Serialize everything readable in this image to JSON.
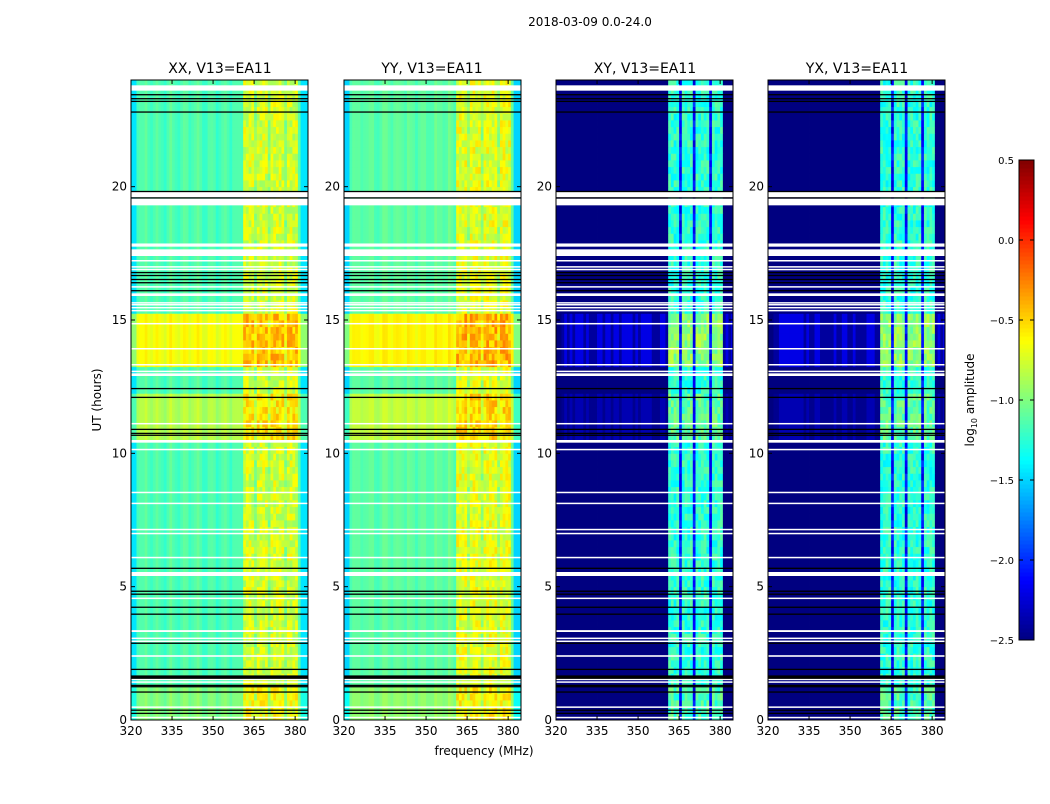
{
  "chart_data": {
    "type": "heatmap",
    "title": "2018-03-09 0.0-24.0",
    "xlabel": "frequency (MHz)",
    "ylabel": "UT (hours)",
    "xlim": [
      320,
      384.7
    ],
    "ylim": [
      0,
      24
    ],
    "xticks": [
      320,
      335,
      350,
      365,
      380
    ],
    "yticks": [
      0,
      5,
      10,
      15,
      20
    ],
    "colormap": "jet",
    "colorbar": {
      "label": "log10 amplitude",
      "label_main": "log",
      "label_sub": "10",
      "label_rest": " amplitude",
      "range": [
        -2.5,
        0.5
      ],
      "ticks": [
        "0.5",
        "0.0",
        "−0.5",
        "−1.0",
        "−1.5",
        "−2.0",
        "−2.5"
      ],
      "tick_values": [
        0.5,
        0.0,
        -0.5,
        -1.0,
        -1.5,
        -2.0,
        -2.5
      ]
    },
    "panels": [
      {
        "title": "XX, V13=EA11",
        "kind": "parallel",
        "base": -1.15,
        "band": -0.75,
        "band_gap": -0.95,
        "edge": -1.45
      },
      {
        "title": "YY, V13=EA11",
        "kind": "parallel",
        "base": -1.1,
        "band": -0.7,
        "band_gap": -0.9,
        "edge": -1.5
      },
      {
        "title": "XY, V13=EA11",
        "kind": "cross",
        "base": -2.5,
        "band": -1.25,
        "band_gap": -2.1,
        "edge": -2.5
      },
      {
        "title": "YX, V13=EA11",
        "kind": "cross",
        "base": -2.5,
        "band": -1.25,
        "band_gap": -2.1,
        "edge": -2.5
      }
    ],
    "rfi_band_columns_mhz": [
      [
        361,
        365.4
      ],
      [
        366.5,
        370
      ],
      [
        371.2,
        375.6
      ],
      [
        376.7,
        380.7
      ]
    ],
    "active_time_blocks_hours": [
      {
        "from": 13.3,
        "to": 15.3,
        "parallel_offset": 0.5,
        "cross_offset": 0.3
      },
      {
        "from": 10.6,
        "to": 12.3,
        "parallel_offset": 0.3,
        "cross_offset": 0.15
      },
      {
        "from": 0.0,
        "to": 1.3,
        "parallel_offset": 0.15,
        "cross_offset": 0.1
      }
    ],
    "flagged_hours": [
      [
        23.6,
        23.8
      ],
      [
        19.6,
        19.8
      ],
      [
        19.3,
        19.55
      ],
      [
        17.75,
        17.87
      ],
      [
        17.4,
        17.65
      ],
      [
        17.2,
        17.25
      ],
      [
        16.98,
        17.02
      ],
      [
        16.88,
        16.92
      ],
      [
        16.23,
        16.27
      ],
      [
        15.9,
        16.0
      ],
      [
        15.63,
        15.67
      ],
      [
        15.56,
        15.6
      ],
      [
        15.45,
        15.49
      ],
      [
        15.34,
        15.38
      ],
      [
        14.85,
        14.89
      ],
      [
        13.91,
        13.95
      ],
      [
        13.31,
        13.35
      ],
      [
        13.05,
        13.1
      ],
      [
        12.9,
        13.0
      ],
      [
        11.1,
        11.14
      ],
      [
        10.4,
        10.5
      ],
      [
        10.13,
        10.17
      ],
      [
        8.52,
        8.56
      ],
      [
        8.11,
        8.15
      ],
      [
        7.13,
        7.17
      ],
      [
        6.98,
        7.02
      ],
      [
        6.08,
        6.12
      ],
      [
        5.4,
        5.55
      ],
      [
        4.55,
        4.59
      ],
      [
        3.3,
        3.37
      ],
      [
        3.05,
        3.09
      ],
      [
        2.94,
        2.98
      ],
      [
        2.37,
        2.43
      ],
      [
        1.51,
        1.55
      ],
      [
        1.41,
        1.45
      ],
      [
        0.47,
        0.51
      ],
      [
        0.08,
        0.12
      ]
    ],
    "flag_boundary_lines_hours": [
      23.45,
      23.3,
      23.2,
      22.8,
      19.82,
      19.58,
      16.78,
      16.67,
      16.52,
      16.4,
      16.1,
      12.43,
      12.1,
      10.9,
      10.75,
      10.68,
      5.69,
      4.83,
      4.72,
      4.23,
      3.97,
      2.88,
      1.9,
      1.57,
      1.61,
      1.65,
      1.25,
      1.3,
      1.05,
      0.37,
      0.25
    ]
  }
}
